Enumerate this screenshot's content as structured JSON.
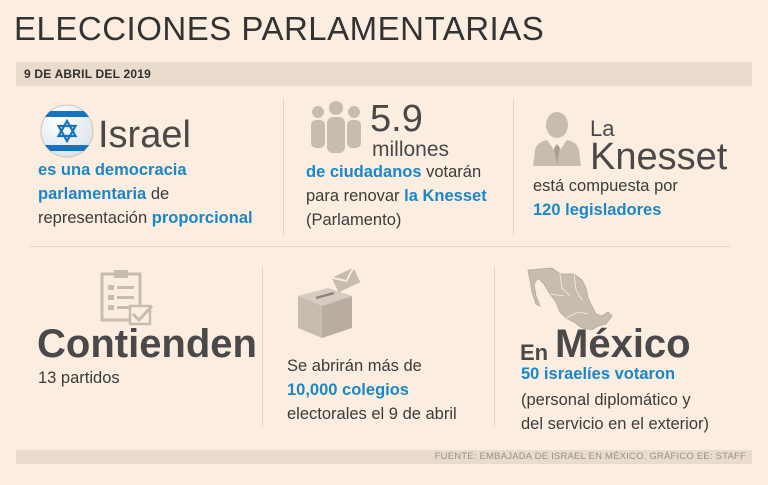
{
  "header": {
    "title": "ELECCIONES PARLAMENTARIAS",
    "date": "9 DE ABRIL DEL 2019"
  },
  "israel": {
    "heading": "Israel",
    "line1": "es una democracia",
    "line2_blue": "parlamentaria",
    "line2_rest": "de",
    "line3_rest": "representación",
    "line3_blue": "proporcional"
  },
  "voters": {
    "number": "5.9",
    "unit": "millones",
    "line1_blue": "de ciudadanos",
    "line1_rest": "votarán",
    "line2_rest": "para renovar",
    "line2_blue": "la Knesset",
    "line3": "(Parlamento)"
  },
  "knesset": {
    "prefix": "La",
    "heading": "Knesset",
    "line1": "está compuesta por",
    "line2_blue": "120 legisladores"
  },
  "parties": {
    "heading": "Contienden",
    "line1": "13 partidos"
  },
  "colleges": {
    "line1": "Se abrirán más de",
    "line2_blue": "10,000 colegios",
    "line3": "electorales el 9 de abril"
  },
  "mexico": {
    "prefix": "En",
    "heading": "México",
    "line1_blue": "50 israelíes votaron",
    "line2": "(personal diplomático y",
    "line3": "del servicio en el exterior)"
  },
  "footer": {
    "source": "FUENTE: EMBAJADA DE ISRAEL EN MÉXICO. GRÁFICO EE: STAFF"
  },
  "colors": {
    "accent": "#1a87c7",
    "background": "#fbeee0",
    "band": "#e9dccd",
    "icon": "#c8bcb0"
  }
}
